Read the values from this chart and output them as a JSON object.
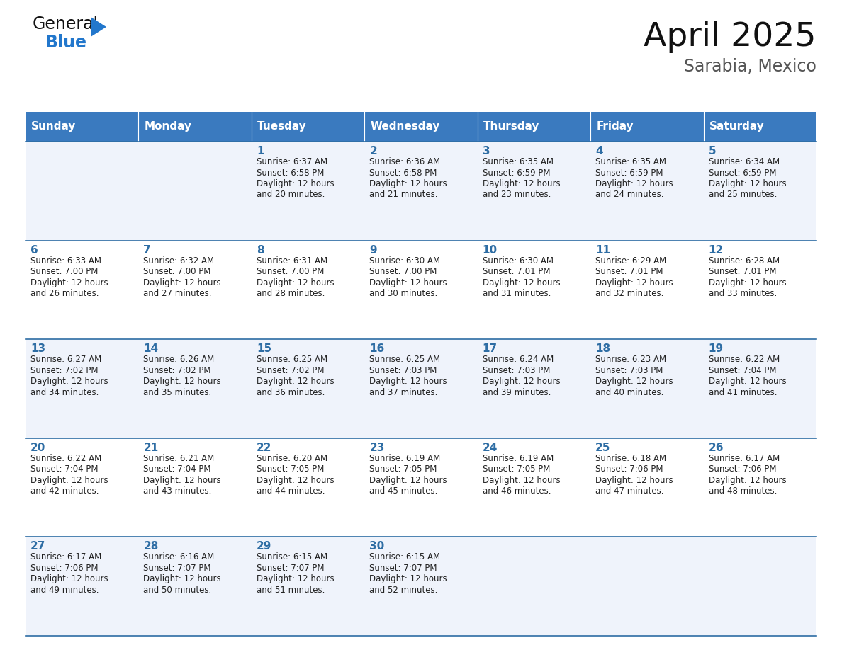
{
  "title": "April 2025",
  "subtitle": "Sarabia, Mexico",
  "days_of_week": [
    "Sunday",
    "Monday",
    "Tuesday",
    "Wednesday",
    "Thursday",
    "Friday",
    "Saturday"
  ],
  "header_bg": "#3a7abf",
  "header_text": "#ffffff",
  "cell_bg_odd": "#eff3fb",
  "cell_bg_even": "#ffffff",
  "border_color": "#2e6da4",
  "day_number_color": "#2e6da4",
  "text_color": "#222222",
  "logo_general_color": "#111111",
  "logo_blue_color": "#2277cc",
  "weeks": [
    [
      {
        "day": null,
        "data": null
      },
      {
        "day": null,
        "data": null
      },
      {
        "day": 1,
        "data": {
          "sunrise": "6:37 AM",
          "sunset": "6:58 PM",
          "daylight": "12 hours and 20 minutes."
        }
      },
      {
        "day": 2,
        "data": {
          "sunrise": "6:36 AM",
          "sunset": "6:58 PM",
          "daylight": "12 hours and 21 minutes."
        }
      },
      {
        "day": 3,
        "data": {
          "sunrise": "6:35 AM",
          "sunset": "6:59 PM",
          "daylight": "12 hours and 23 minutes."
        }
      },
      {
        "day": 4,
        "data": {
          "sunrise": "6:35 AM",
          "sunset": "6:59 PM",
          "daylight": "12 hours and 24 minutes."
        }
      },
      {
        "day": 5,
        "data": {
          "sunrise": "6:34 AM",
          "sunset": "6:59 PM",
          "daylight": "12 hours and 25 minutes."
        }
      }
    ],
    [
      {
        "day": 6,
        "data": {
          "sunrise": "6:33 AM",
          "sunset": "7:00 PM",
          "daylight": "12 hours and 26 minutes."
        }
      },
      {
        "day": 7,
        "data": {
          "sunrise": "6:32 AM",
          "sunset": "7:00 PM",
          "daylight": "12 hours and 27 minutes."
        }
      },
      {
        "day": 8,
        "data": {
          "sunrise": "6:31 AM",
          "sunset": "7:00 PM",
          "daylight": "12 hours and 28 minutes."
        }
      },
      {
        "day": 9,
        "data": {
          "sunrise": "6:30 AM",
          "sunset": "7:00 PM",
          "daylight": "12 hours and 30 minutes."
        }
      },
      {
        "day": 10,
        "data": {
          "sunrise": "6:30 AM",
          "sunset": "7:01 PM",
          "daylight": "12 hours and 31 minutes."
        }
      },
      {
        "day": 11,
        "data": {
          "sunrise": "6:29 AM",
          "sunset": "7:01 PM",
          "daylight": "12 hours and 32 minutes."
        }
      },
      {
        "day": 12,
        "data": {
          "sunrise": "6:28 AM",
          "sunset": "7:01 PM",
          "daylight": "12 hours and 33 minutes."
        }
      }
    ],
    [
      {
        "day": 13,
        "data": {
          "sunrise": "6:27 AM",
          "sunset": "7:02 PM",
          "daylight": "12 hours and 34 minutes."
        }
      },
      {
        "day": 14,
        "data": {
          "sunrise": "6:26 AM",
          "sunset": "7:02 PM",
          "daylight": "12 hours and 35 minutes."
        }
      },
      {
        "day": 15,
        "data": {
          "sunrise": "6:25 AM",
          "sunset": "7:02 PM",
          "daylight": "12 hours and 36 minutes."
        }
      },
      {
        "day": 16,
        "data": {
          "sunrise": "6:25 AM",
          "sunset": "7:03 PM",
          "daylight": "12 hours and 37 minutes."
        }
      },
      {
        "day": 17,
        "data": {
          "sunrise": "6:24 AM",
          "sunset": "7:03 PM",
          "daylight": "12 hours and 39 minutes."
        }
      },
      {
        "day": 18,
        "data": {
          "sunrise": "6:23 AM",
          "sunset": "7:03 PM",
          "daylight": "12 hours and 40 minutes."
        }
      },
      {
        "day": 19,
        "data": {
          "sunrise": "6:22 AM",
          "sunset": "7:04 PM",
          "daylight": "12 hours and 41 minutes."
        }
      }
    ],
    [
      {
        "day": 20,
        "data": {
          "sunrise": "6:22 AM",
          "sunset": "7:04 PM",
          "daylight": "12 hours and 42 minutes."
        }
      },
      {
        "day": 21,
        "data": {
          "sunrise": "6:21 AM",
          "sunset": "7:04 PM",
          "daylight": "12 hours and 43 minutes."
        }
      },
      {
        "day": 22,
        "data": {
          "sunrise": "6:20 AM",
          "sunset": "7:05 PM",
          "daylight": "12 hours and 44 minutes."
        }
      },
      {
        "day": 23,
        "data": {
          "sunrise": "6:19 AM",
          "sunset": "7:05 PM",
          "daylight": "12 hours and 45 minutes."
        }
      },
      {
        "day": 24,
        "data": {
          "sunrise": "6:19 AM",
          "sunset": "7:05 PM",
          "daylight": "12 hours and 46 minutes."
        }
      },
      {
        "day": 25,
        "data": {
          "sunrise": "6:18 AM",
          "sunset": "7:06 PM",
          "daylight": "12 hours and 47 minutes."
        }
      },
      {
        "day": 26,
        "data": {
          "sunrise": "6:17 AM",
          "sunset": "7:06 PM",
          "daylight": "12 hours and 48 minutes."
        }
      }
    ],
    [
      {
        "day": 27,
        "data": {
          "sunrise": "6:17 AM",
          "sunset": "7:06 PM",
          "daylight": "12 hours and 49 minutes."
        }
      },
      {
        "day": 28,
        "data": {
          "sunrise": "6:16 AM",
          "sunset": "7:07 PM",
          "daylight": "12 hours and 50 minutes."
        }
      },
      {
        "day": 29,
        "data": {
          "sunrise": "6:15 AM",
          "sunset": "7:07 PM",
          "daylight": "12 hours and 51 minutes."
        }
      },
      {
        "day": 30,
        "data": {
          "sunrise": "6:15 AM",
          "sunset": "7:07 PM",
          "daylight": "12 hours and 52 minutes."
        }
      },
      {
        "day": null,
        "data": null
      },
      {
        "day": null,
        "data": null
      },
      {
        "day": null,
        "data": null
      }
    ]
  ]
}
